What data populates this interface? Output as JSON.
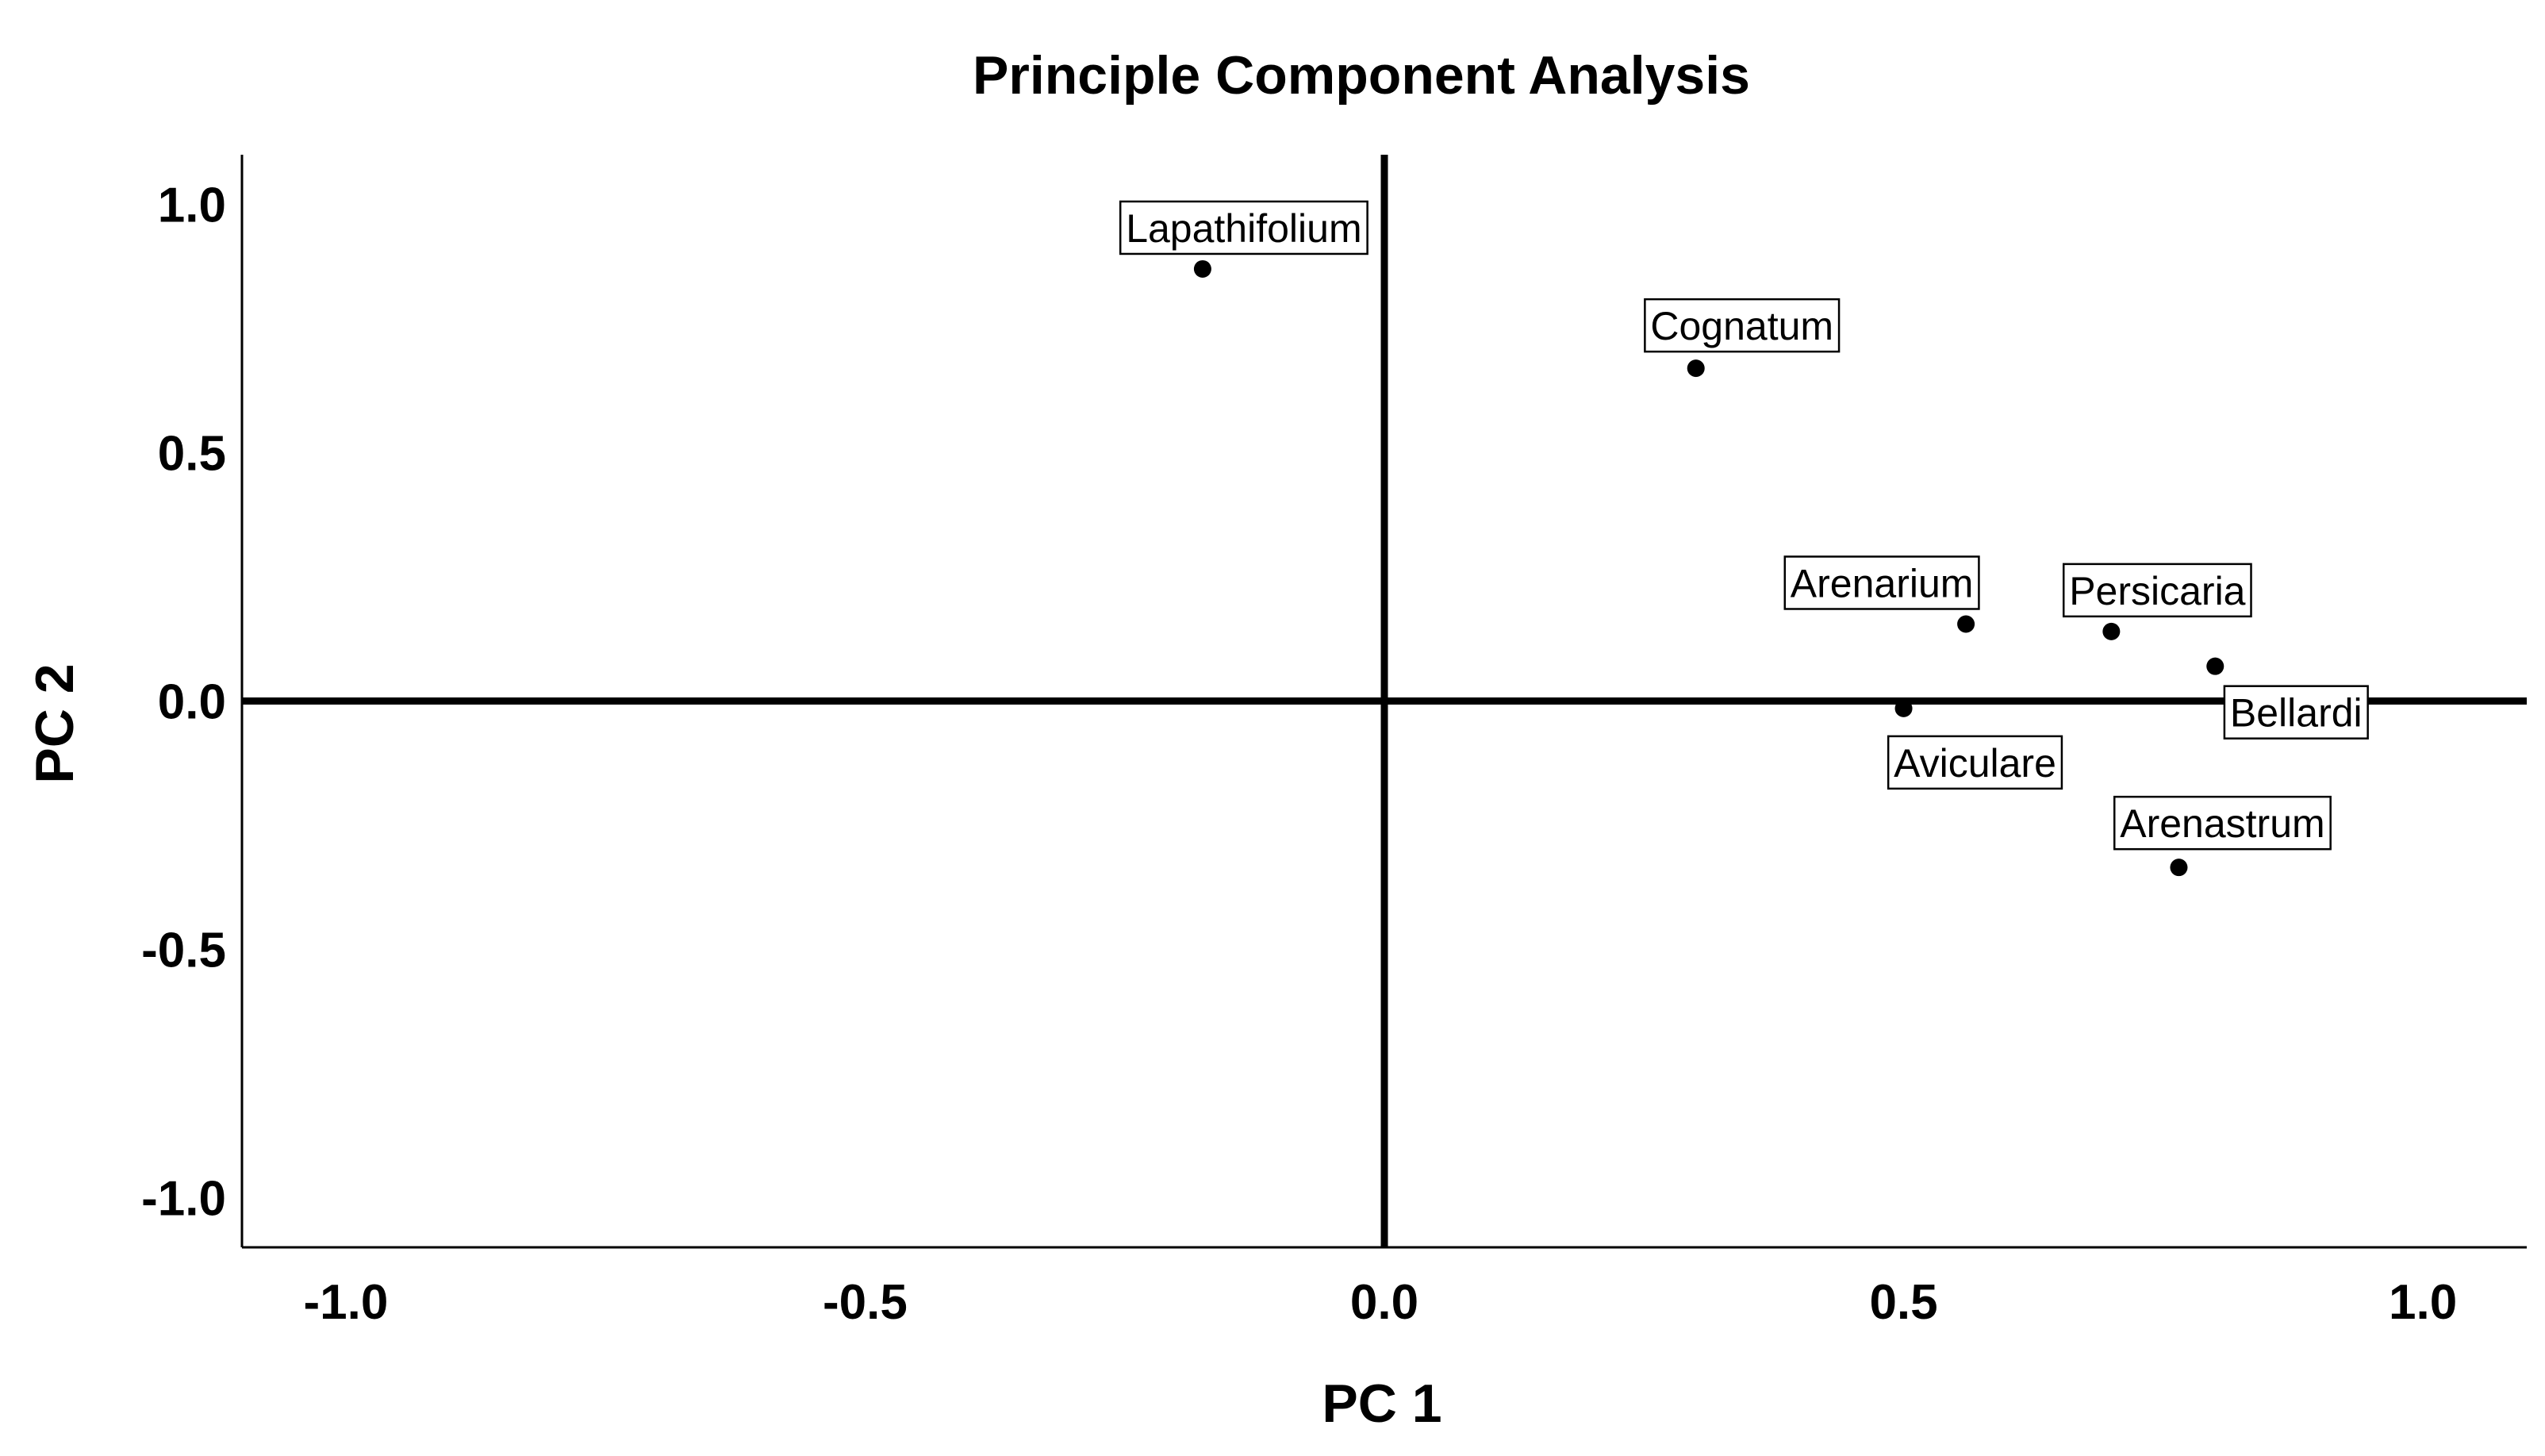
{
  "chart_data": {
    "type": "scatter",
    "title": "Principle Component Analysis",
    "xlabel": "PC 1",
    "ylabel": "PC 2",
    "xlim": [
      -1.1,
      1.1
    ],
    "ylim": [
      -1.1,
      1.1
    ],
    "xticks": [
      -1.0,
      -0.5,
      0.0,
      0.5,
      1.0
    ],
    "yticks": [
      -1.0,
      -0.5,
      0.0,
      0.5,
      1.0
    ],
    "xtick_labels": [
      "-1.0",
      "-0.5",
      "0.0",
      "0.5",
      "1.0"
    ],
    "ytick_labels": [
      "-1.0",
      "-0.5",
      "0.0",
      "0.5",
      "1.0"
    ],
    "grid": false,
    "reference_lines": {
      "x": 0,
      "y": 0
    },
    "points": [
      {
        "label": "Lapathifolium",
        "x": -0.175,
        "y": 0.87
      },
      {
        "label": "Cognatum",
        "x": 0.3,
        "y": 0.67
      },
      {
        "label": "Arenarium",
        "x": 0.56,
        "y": 0.155
      },
      {
        "label": "Persicaria",
        "x": 0.7,
        "y": 0.14
      },
      {
        "label": "Bellardi",
        "x": 0.8,
        "y": 0.07
      },
      {
        "label": "Aviculare",
        "x": 0.5,
        "y": -0.015
      },
      {
        "label": "Arenastrum",
        "x": 0.765,
        "y": -0.335
      }
    ],
    "marker_color": "#000000"
  }
}
